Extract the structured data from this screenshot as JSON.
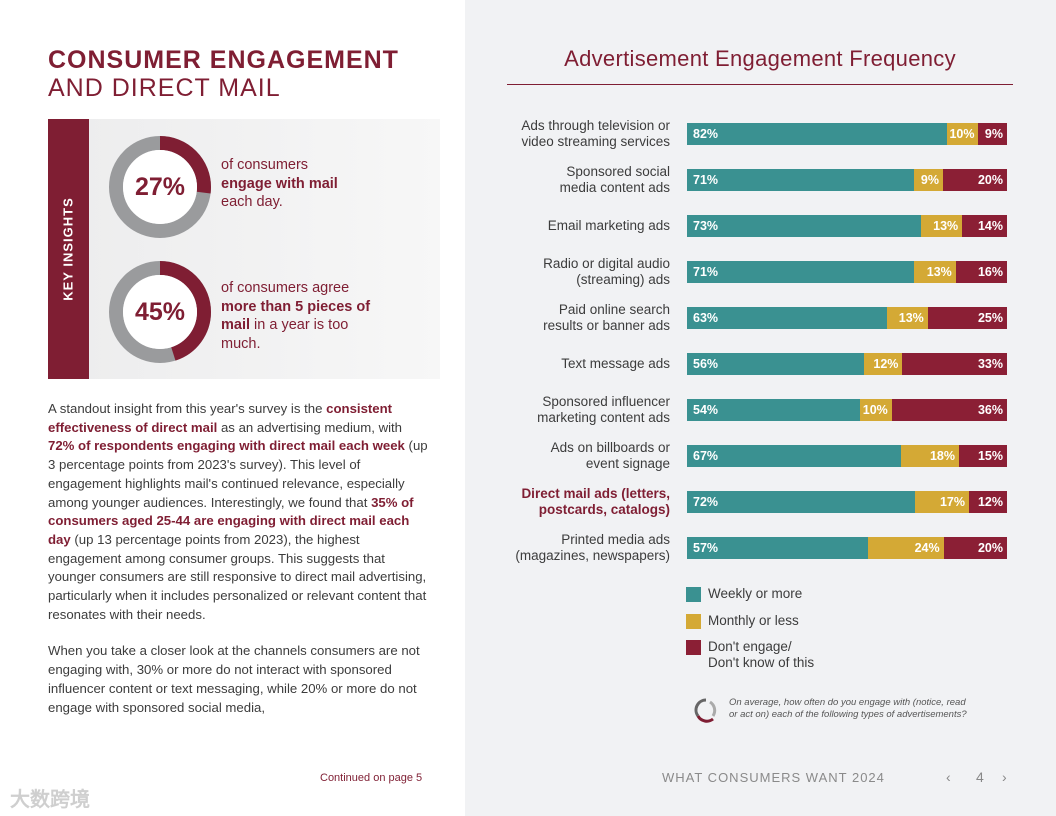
{
  "title_line1": "CONSUMER ENGAGEMENT",
  "title_line2": "AND DIRECT MAIL",
  "key_insights": {
    "label": "KEY INSIGHTS",
    "items": [
      {
        "percent": "27%",
        "value": 27,
        "pre": "of consumers",
        "bold": "engage with mail",
        "post": "each day."
      },
      {
        "percent": "45%",
        "value": 45,
        "pre": "of consumers agree",
        "bold": "more than 5 pieces of mail",
        "post": " in a year is too much."
      }
    ]
  },
  "paragraphs": [
    [
      {
        "t": "A standout insight from this year's survey is the "
      },
      {
        "t": "consistent effectiveness of direct mail",
        "b": true
      },
      {
        "t": " as an advertising medium, with "
      },
      {
        "t": "72% of respondents engaging with direct mail each week",
        "b": true
      },
      {
        "t": " (up 3 percentage points from 2023's survey). This level of engagement highlights mail's continued relevance, especially among younger audiences. Interestingly, we found that "
      },
      {
        "t": "35% of consumers aged 25-44 are engaging with direct mail each day",
        "b": true
      },
      {
        "t": " (up 13 percentage points from 2023), the highest engagement among consumer groups. This suggests that younger consumers are still responsive to direct mail advertising, particularly when it includes personalized or relevant content that resonates with their needs."
      }
    ],
    [
      {
        "t": "When you take a closer look at the channels consumers are not engaging with, 30% or more do not interact with sponsored influencer content or text messaging, while 20% or more do not engage with sponsored social media,"
      }
    ]
  ],
  "continued": "Continued on page 5",
  "watermark": "大数跨境",
  "colors": {
    "weekly": "#3a9191",
    "monthly": "#d4a935",
    "none": "#8b1f35",
    "brand": "#7f1e33"
  },
  "chart_data": {
    "type": "bar",
    "stacked": true,
    "orientation": "horizontal",
    "title": "Advertisement Engagement Frequency",
    "categories": [
      "Ads through television or video streaming services",
      "Sponsored social media content ads",
      "Email marketing ads",
      "Radio or digital audio (streaming) ads",
      "Paid online search results or banner ads",
      "Text message ads",
      "Sponsored influencer marketing content ads",
      "Ads on billboards or event signage",
      "Direct mail ads (letters, postcards, catalogs)",
      "Printed media ads (magazines, newspapers)"
    ],
    "category_lines": [
      [
        "Ads through television or",
        "video streaming services"
      ],
      [
        "Sponsored social",
        "media content ads"
      ],
      [
        "Email marketing ads"
      ],
      [
        "Radio or digital audio",
        "(streaming) ads"
      ],
      [
        "Paid online search",
        "results or banner ads"
      ],
      [
        "Text message ads"
      ],
      [
        "Sponsored influencer",
        "marketing content ads"
      ],
      [
        "Ads on billboards or",
        "event signage"
      ],
      [
        "Direct mail ads (letters,",
        "postcards, catalogs)"
      ],
      [
        "Printed media ads",
        "(magazines, newspapers)"
      ]
    ],
    "highlight_index": 8,
    "series": [
      {
        "name": "Weekly or more",
        "values": [
          82,
          71,
          73,
          71,
          63,
          56,
          54,
          67,
          72,
          57
        ]
      },
      {
        "name": "Monthly or less",
        "values": [
          10,
          9,
          13,
          13,
          13,
          12,
          10,
          18,
          17,
          24
        ]
      },
      {
        "name": "Don't engage/ Don't know of this",
        "values": [
          9,
          20,
          14,
          16,
          25,
          33,
          36,
          15,
          12,
          20
        ]
      }
    ],
    "legend_lines": [
      [
        "Weekly or more"
      ],
      [
        "Monthly or less"
      ],
      [
        "Don't engage/",
        "Don't know of this"
      ]
    ],
    "legend_position": "bottom-left"
  },
  "question": [
    "On average, how often do you engage with (notice, read",
    "or act on) each of the following types of advertisements?"
  ],
  "footer": {
    "text": "WHAT CONSUMERS WANT 2024",
    "page": "4",
    "prev": "‹",
    "next": "›"
  }
}
